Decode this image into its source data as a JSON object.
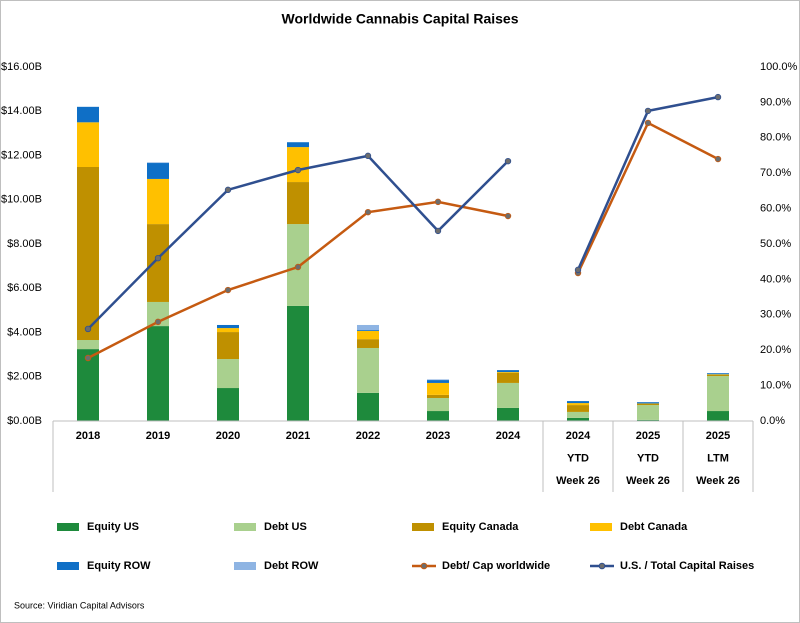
{
  "chart_data": {
    "type": "bar",
    "stacked": true,
    "title": "Worldwide Cannabis Capital Raises",
    "source": "Source: Viridian Capital Advisors",
    "groups": [
      {
        "categories": [
          [
            "2018"
          ],
          [
            "2019"
          ],
          [
            "2020"
          ],
          [
            "2021"
          ],
          [
            "2022"
          ],
          [
            "2023"
          ],
          [
            "2024"
          ]
        ]
      },
      {
        "categories": [
          [
            "2024",
            "YTD",
            "Week 26"
          ],
          [
            "2025",
            "YTD",
            "Week 26"
          ],
          [
            "2025",
            "LTM",
            "Week 26"
          ]
        ]
      }
    ],
    "ylim": [
      0,
      16
    ],
    "yticks": [
      {
        "value": 0,
        "label": "$0.00B"
      },
      {
        "value": 2,
        "label": "$2.00B"
      },
      {
        "value": 4,
        "label": "$4.00B"
      },
      {
        "value": 6,
        "label": "$6.00B"
      },
      {
        "value": 8,
        "label": "$8.00B"
      },
      {
        "value": 10,
        "label": "$10.00B"
      },
      {
        "value": 12,
        "label": "$12.00B"
      },
      {
        "value": 14,
        "label": "$14.00B"
      },
      {
        "value": 16,
        "label": "$16.00B"
      }
    ],
    "y2lim": [
      0,
      100
    ],
    "y2ticks": [
      {
        "value": 0,
        "label": "0.0%"
      },
      {
        "value": 10,
        "label": "10.0%"
      },
      {
        "value": 20,
        "label": "20.0%"
      },
      {
        "value": 30,
        "label": "30.0%"
      },
      {
        "value": 40,
        "label": "40.0%"
      },
      {
        "value": 50,
        "label": "50.0%"
      },
      {
        "value": 60,
        "label": "60.0%"
      },
      {
        "value": 70,
        "label": "70.0%"
      },
      {
        "value": 80,
        "label": "80.0%"
      },
      {
        "value": 90,
        "label": "90.0%"
      },
      {
        "value": 100,
        "label": "100.0%"
      }
    ],
    "series": [
      {
        "name": "Equity US",
        "type": "bar",
        "color": "#1e8a3c",
        "values": [
          3.25,
          4.29,
          1.49,
          5.2,
          1.27,
          0.45,
          0.59,
          0.14,
          0.05,
          0.45
        ]
      },
      {
        "name": "Debt US",
        "type": "bar",
        "color": "#a9d08e",
        "values": [
          0.41,
          1.09,
          1.31,
          3.7,
          2.03,
          0.59,
          1.13,
          0.27,
          0.67,
          1.58
        ]
      },
      {
        "name": "Equity Canada",
        "type": "bar",
        "color": "#bf9000",
        "values": [
          7.82,
          3.52,
          1.22,
          1.9,
          0.4,
          0.14,
          0.45,
          0.31,
          0.05,
          0.05
        ]
      },
      {
        "name": "Debt Canada",
        "type": "bar",
        "color": "#ffc000",
        "values": [
          2.02,
          2.04,
          0.18,
          1.58,
          0.37,
          0.54,
          0.04,
          0.09,
          0.02,
          0.03
        ]
      },
      {
        "name": "Equity ROW",
        "type": "bar",
        "color": "#0f6fc6",
        "values": [
          0.7,
          0.72,
          0.14,
          0.22,
          0.04,
          0.13,
          0.09,
          0.09,
          0.06,
          0.05
        ]
      },
      {
        "name": "Debt ROW",
        "type": "bar",
        "color": "#8eb4e3",
        "values": [
          0,
          0.03,
          0,
          0,
          0.23,
          0.03,
          0,
          0,
          0,
          0
        ]
      },
      {
        "name": "Debt/ Cap worldwide",
        "type": "line",
        "axis": "y2",
        "color": "#c55a11",
        "values": [
          17.8,
          28,
          37,
          43.5,
          59,
          61.9,
          57.9,
          41.8,
          84.2,
          74
        ]
      },
      {
        "name": "U.S. / Total Capital Raises",
        "type": "line",
        "axis": "y2",
        "color": "#2f4f8f",
        "values": [
          26,
          46,
          65.3,
          70.9,
          74.9,
          53.7,
          73.4,
          42.7,
          87.6,
          91.5
        ]
      }
    ]
  }
}
